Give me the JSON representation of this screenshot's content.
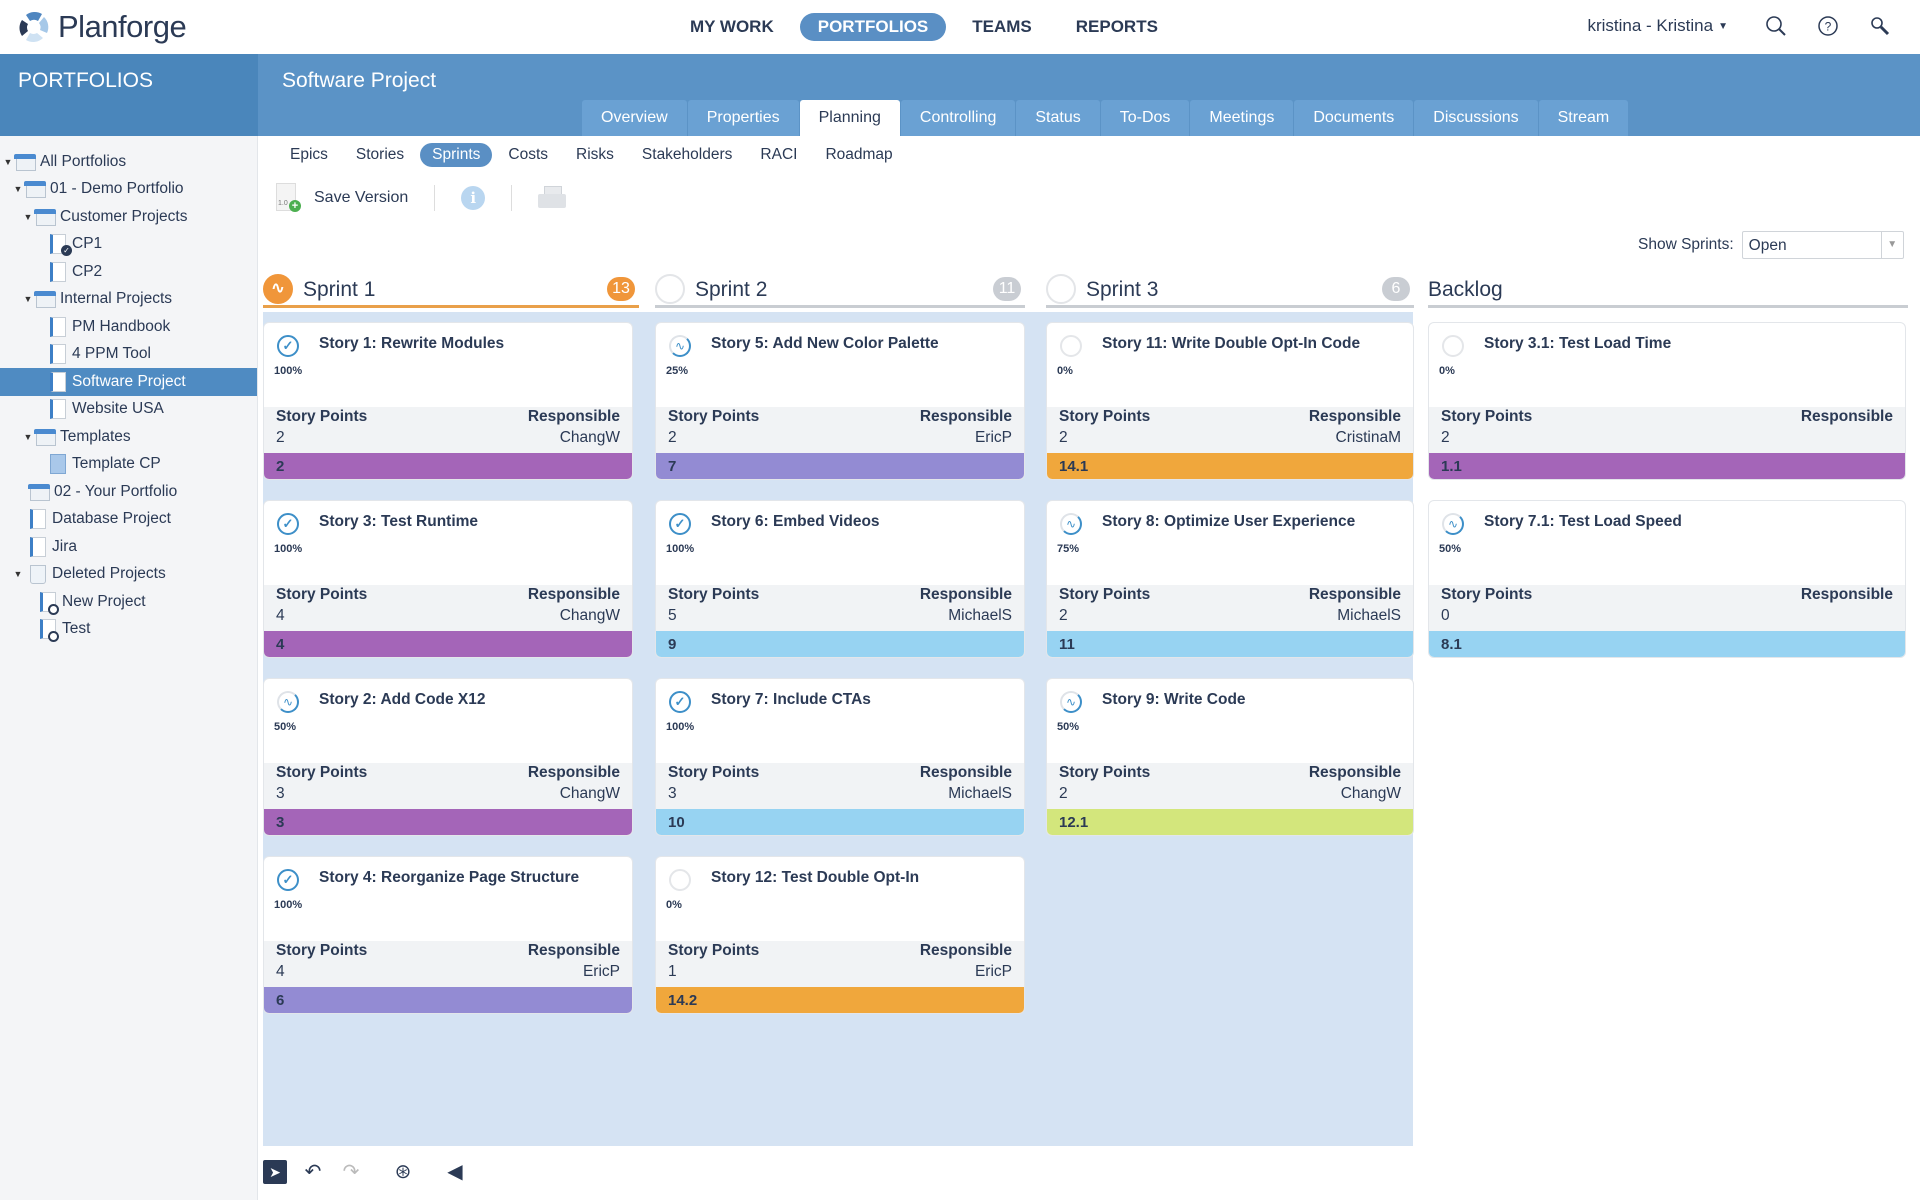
{
  "app": {
    "logo": "Planforge",
    "main_nav": [
      {
        "label": "MY WORK",
        "active": false
      },
      {
        "label": "PORTFOLIOS",
        "active": true
      },
      {
        "label": "TEAMS",
        "active": false
      },
      {
        "label": "REPORTS",
        "active": false
      }
    ],
    "user": "kristina - Kristina",
    "icons": [
      "search-icon",
      "help-icon",
      "tools-icon"
    ]
  },
  "sidebar": {
    "title": "PORTFOLIOS",
    "tree": [
      {
        "label": "All Portfolios",
        "level": 0,
        "type": "folder",
        "expanded": true
      },
      {
        "label": "01 - Demo Portfolio",
        "level": 1,
        "type": "folder",
        "expanded": true
      },
      {
        "label": "Customer Projects",
        "level": 2,
        "type": "folder",
        "expanded": true
      },
      {
        "label": "CP1",
        "level": 3,
        "type": "project",
        "badge": "check"
      },
      {
        "label": "CP2",
        "level": 3,
        "type": "project"
      },
      {
        "label": "Internal Projects",
        "level": 2,
        "type": "folder",
        "expanded": true
      },
      {
        "label": "PM Handbook",
        "level": 3,
        "type": "project"
      },
      {
        "label": "4 PPM Tool",
        "level": 3,
        "type": "project"
      },
      {
        "label": "Software Project",
        "level": 3,
        "type": "project",
        "selected": true
      },
      {
        "label": "Website USA",
        "level": 3,
        "type": "project"
      },
      {
        "label": "Templates",
        "level": 2,
        "type": "folder",
        "expanded": true
      },
      {
        "label": "Template CP",
        "level": 3,
        "type": "template"
      },
      {
        "label": "02 - Your Portfolio",
        "level": 1,
        "type": "folder"
      },
      {
        "label": "Database Project",
        "level": 1,
        "type": "project"
      },
      {
        "label": "Jira",
        "level": 1,
        "type": "project"
      },
      {
        "label": "Deleted Projects",
        "level": 1,
        "type": "trash",
        "expanded": true
      },
      {
        "label": "New Project",
        "level": 2,
        "type": "project",
        "badge": "lock"
      },
      {
        "label": "Test",
        "level": 2,
        "type": "project",
        "badge": "lock"
      }
    ]
  },
  "project": {
    "title": "Software Project",
    "tabs": [
      {
        "label": "Overview"
      },
      {
        "label": "Properties"
      },
      {
        "label": "Planning",
        "active": true
      },
      {
        "label": "Controlling"
      },
      {
        "label": "Status"
      },
      {
        "label": "To-Dos"
      },
      {
        "label": "Meetings"
      },
      {
        "label": "Documents"
      },
      {
        "label": "Discussions"
      },
      {
        "label": "Stream"
      }
    ],
    "subtabs": [
      {
        "label": "Epics"
      },
      {
        "label": "Stories"
      },
      {
        "label": "Sprints",
        "active": true
      },
      {
        "label": "Costs"
      },
      {
        "label": "Risks"
      },
      {
        "label": "Stakeholders"
      },
      {
        "label": "RACI"
      },
      {
        "label": "Roadmap"
      }
    ],
    "toolbar": {
      "save_version": "Save Version",
      "version_tag": "1.0"
    },
    "show_sprints": {
      "label": "Show Sprints:",
      "value": "Open"
    }
  },
  "board": {
    "labels": {
      "story_points": "Story Points",
      "responsible": "Responsible"
    },
    "columns": [
      {
        "title": "Sprint 1",
        "count": "13",
        "current": true,
        "cards": [
          {
            "title": "Story 1: Rewrite Modules",
            "pct": "100%",
            "status": "done",
            "points": "2",
            "responsible": "ChangW",
            "epic": "2",
            "color": "#a465b8"
          },
          {
            "title": "Story 3: Test Runtime",
            "pct": "100%",
            "status": "done",
            "points": "4",
            "responsible": "ChangW",
            "epic": "4",
            "color": "#a465b8"
          },
          {
            "title": "Story 2: Add Code X12",
            "pct": "50%",
            "status": "progress",
            "points": "3",
            "responsible": "ChangW",
            "epic": "3",
            "color": "#a465b8"
          },
          {
            "title": "Story 4: Reorganize Page Structure",
            "pct": "100%",
            "status": "done",
            "points": "4",
            "responsible": "EricP",
            "epic": "6",
            "color": "#938bd3"
          }
        ]
      },
      {
        "title": "Sprint 2",
        "count": "11",
        "current": false,
        "cards": [
          {
            "title": "Story 5: Add New Color Palette",
            "pct": "25%",
            "status": "progress",
            "points": "2",
            "responsible": "EricP",
            "epic": "7",
            "color": "#938bd3"
          },
          {
            "title": "Story 6: Embed Videos",
            "pct": "100%",
            "status": "done",
            "points": "5",
            "responsible": "MichaelS",
            "epic": "9",
            "color": "#97d3f2"
          },
          {
            "title": "Story 7: Include CTAs",
            "pct": "100%",
            "status": "done",
            "points": "3",
            "responsible": "MichaelS",
            "epic": "10",
            "color": "#97d3f2"
          },
          {
            "title": "Story 12: Test Double Opt-In",
            "pct": "0%",
            "status": "todo",
            "points": "1",
            "responsible": "EricP",
            "epic": "14.2",
            "color": "#f0a73c"
          }
        ]
      },
      {
        "title": "Sprint 3",
        "count": "6",
        "current": false,
        "cards": [
          {
            "title": "Story 11: Write Double Opt-In Code",
            "pct": "0%",
            "status": "todo",
            "points": "2",
            "responsible": "CristinaM",
            "epic": "14.1",
            "color": "#f0a73c"
          },
          {
            "title": "Story 8: Optimize User Experience",
            "pct": "75%",
            "status": "progress",
            "points": "2",
            "responsible": "MichaelS",
            "epic": "11",
            "color": "#97d3f2"
          },
          {
            "title": "Story 9: Write Code",
            "pct": "50%",
            "status": "progress",
            "points": "2",
            "responsible": "ChangW",
            "epic": "12.1",
            "color": "#d3e67c"
          }
        ]
      },
      {
        "title": "Backlog",
        "count": "",
        "current": false,
        "cards": [
          {
            "title": "Story 3.1: Test Load Time",
            "pct": "0%",
            "status": "todo",
            "points": "2",
            "responsible": "",
            "epic": "1.1",
            "color": "#a465b8"
          },
          {
            "title": "Story 7.1: Test Load Speed",
            "pct": "50%",
            "status": "progress",
            "points": "0",
            "responsible": "",
            "epic": "8.1",
            "color": "#97d3f2"
          }
        ]
      }
    ]
  },
  "bottom_toolbar": [
    "pointer-tool",
    "undo",
    "redo",
    "assign-user",
    "send"
  ]
}
